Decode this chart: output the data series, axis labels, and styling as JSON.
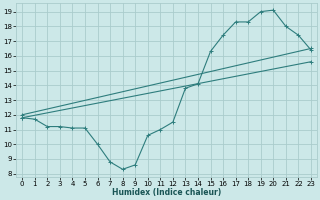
{
  "xlabel": "Humidex (Indice chaleur)",
  "background_color": "#cce8e8",
  "grid_color": "#aacccc",
  "line_color": "#2e7d7d",
  "xlim": [
    -0.5,
    23.5
  ],
  "ylim": [
    7.8,
    19.6
  ],
  "xticks": [
    0,
    1,
    2,
    3,
    4,
    5,
    6,
    7,
    8,
    9,
    10,
    11,
    12,
    13,
    14,
    15,
    16,
    17,
    18,
    19,
    20,
    21,
    22,
    23
  ],
  "yticks": [
    8,
    9,
    10,
    11,
    12,
    13,
    14,
    15,
    16,
    17,
    18,
    19
  ],
  "series1_x": [
    0,
    1,
    2,
    3,
    4,
    5,
    6,
    7,
    8,
    9,
    10,
    11,
    12,
    13,
    14,
    15,
    16,
    17,
    18,
    19,
    20,
    21,
    22,
    23
  ],
  "series1_y": [
    11.8,
    11.7,
    11.2,
    11.2,
    11.1,
    11.1,
    10.0,
    8.8,
    8.3,
    8.6,
    10.6,
    11.0,
    11.5,
    13.8,
    14.1,
    16.3,
    17.4,
    18.3,
    18.3,
    19.0,
    19.1,
    18.0,
    17.4,
    16.4
  ],
  "series2_x": [
    0,
    23
  ],
  "series2_y": [
    11.8,
    15.6
  ],
  "series3_x": [
    0,
    23
  ],
  "series3_y": [
    12.0,
    16.5
  ]
}
